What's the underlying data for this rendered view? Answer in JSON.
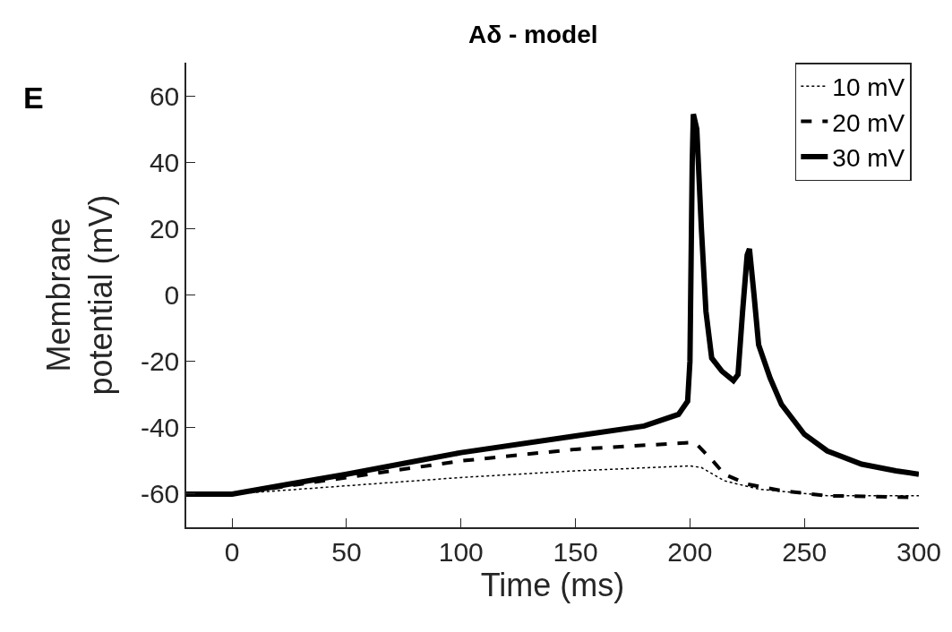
{
  "chart_data": {
    "type": "line",
    "title": "Aδ - model",
    "xlabel": "Time (ms)",
    "ylabel": "Membrane\npotential (mV)",
    "annotations": [
      "E"
    ],
    "xlim": [
      -20,
      300
    ],
    "xticks": [
      0,
      50,
      100,
      150,
      200,
      250,
      300
    ],
    "ylim": [
      -70,
      70
    ],
    "yticks": [
      -60,
      -40,
      -20,
      0,
      20,
      40,
      60
    ],
    "legend": "top right",
    "series": [
      {
        "name": "10 mV",
        "color": "#000000",
        "line_style": "dotted",
        "x": [
          -20,
          0,
          50,
          100,
          150,
          200,
          205,
          215,
          230,
          260,
          300
        ],
        "values": [
          -60,
          -60,
          -57.5,
          -55,
          -53,
          -51.5,
          -52,
          -56,
          -58.5,
          -60.5,
          -60.5
        ]
      },
      {
        "name": "20 mV",
        "color": "#000000",
        "line_style": "dashed",
        "x": [
          -20,
          0,
          50,
          100,
          150,
          200,
          203,
          210,
          215,
          225,
          240,
          260,
          300
        ],
        "values": [
          -60,
          -60,
          -55,
          -50,
          -46.5,
          -44.5,
          -45,
          -50,
          -54,
          -57,
          -59,
          -60.5,
          -61
        ]
      },
      {
        "name": "30 mV",
        "color": "#000000",
        "line_style": "solid",
        "x": [
          -20,
          0,
          25,
          50,
          100,
          150,
          180,
          195,
          199,
          200,
          201,
          201.5,
          203,
          205,
          207,
          209.5,
          214,
          219,
          221,
          223,
          225,
          226,
          228,
          230,
          235,
          240,
          250,
          260,
          275,
          290,
          300
        ],
        "values": [
          -60,
          -60,
          -57,
          -54,
          -47.5,
          -42.5,
          -39.5,
          -36,
          -32,
          -20,
          40,
          54.5,
          50,
          20,
          -5,
          -19,
          -23,
          -25.8,
          -24,
          -5,
          12,
          13.9,
          0,
          -15,
          -25,
          -33,
          -42,
          -47,
          -51,
          -53,
          -54
        ]
      }
    ]
  }
}
